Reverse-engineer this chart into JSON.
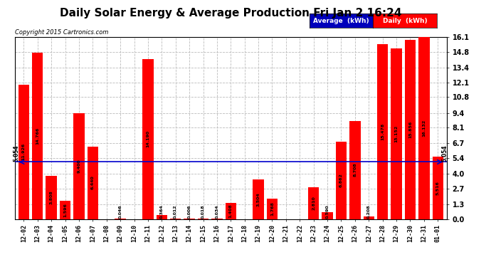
{
  "title": "Daily Solar Energy & Average Production Fri Jan 2 16:24",
  "copyright": "Copyright 2015 Cartronics.com",
  "categories": [
    "12-02",
    "12-03",
    "12-04",
    "12-05",
    "12-06",
    "12-07",
    "12-08",
    "12-09",
    "12-10",
    "12-11",
    "12-12",
    "12-13",
    "12-14",
    "12-15",
    "12-16",
    "12-17",
    "12-18",
    "12-19",
    "12-20",
    "12-21",
    "12-22",
    "12-23",
    "12-24",
    "12-25",
    "12-26",
    "12-27",
    "12-28",
    "12-29",
    "12-30",
    "12-31",
    "01-01"
  ],
  "values": [
    11.926,
    14.766,
    3.808,
    1.596,
    9.4,
    6.44,
    0.0,
    0.046,
    0.0,
    14.19,
    0.364,
    0.012,
    0.006,
    0.018,
    0.034,
    1.408,
    0.0,
    3.504,
    1.768,
    0.0,
    0.0,
    2.81,
    0.59,
    6.862,
    8.708,
    0.208,
    15.478,
    15.152,
    15.856,
    16.132,
    5.516
  ],
  "average": 5.054,
  "bar_color": "#ff0000",
  "average_line_color": "#0000cc",
  "ylim": [
    0,
    16.1
  ],
  "yticks": [
    0.0,
    1.3,
    2.7,
    4.0,
    5.4,
    6.7,
    8.1,
    9.4,
    10.8,
    12.1,
    13.4,
    14.8,
    16.1
  ],
  "background_color": "#ffffff",
  "grid_color": "#bbbbbb",
  "title_fontsize": 12,
  "legend_avg_color": "#0000bb",
  "legend_daily_color": "#ff0000",
  "legend_text_color": "#ffffff"
}
